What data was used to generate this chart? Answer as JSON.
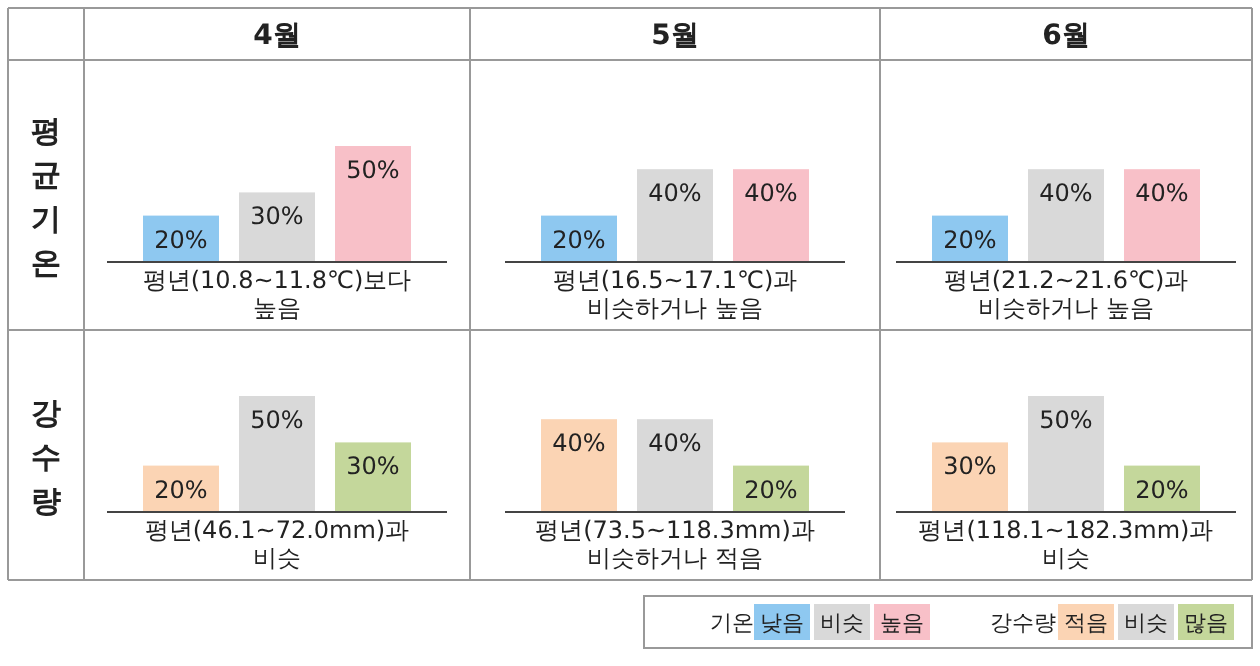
{
  "chart_data": [
    {
      "type": "bar",
      "title": "4월",
      "ylabel": "평균기온",
      "categories": [
        null,
        null,
        null
      ],
      "values": [
        20,
        30,
        50
      ],
      "value_labels": [
        "20%",
        "30%",
        "50%"
      ],
      "colors": [
        "#8ec8f0",
        "#d9d9d9",
        "#f8c0c8"
      ],
      "annotations": [
        "평년(10.8~11.8℃)보다 높음"
      ]
    },
    {
      "type": "bar",
      "title": "5월",
      "categories": [
        null,
        null,
        null
      ],
      "values": [
        20,
        40,
        40
      ],
      "value_labels": [
        "20%",
        "40%",
        "40%"
      ],
      "colors": [
        "#8ec8f0",
        "#d9d9d9",
        "#f8c0c8"
      ],
      "annotations": [
        "평년(16.5~17.1℃)과 비슷하거나 높음"
      ]
    },
    {
      "type": "bar",
      "title": "6월",
      "categories": [
        null,
        null,
        null
      ],
      "values": [
        20,
        40,
        40
      ],
      "value_labels": [
        "20%",
        "40%",
        "40%"
      ],
      "colors": [
        "#8ec8f0",
        "#d9d9d9",
        "#f8c0c8"
      ],
      "annotations": [
        "평년(21.2~21.6℃)과 비슷하거나 높음"
      ]
    },
    {
      "type": "bar",
      "ylabel": "강수량",
      "categories": [
        null,
        null,
        null
      ],
      "values": [
        20,
        50,
        30
      ],
      "value_labels": [
        "20%",
        "50%",
        "30%"
      ],
      "colors": [
        "#fbd4b4",
        "#d9d9d9",
        "#c4d79b"
      ],
      "annotations": [
        "평년(46.1~72.0mm)과 비슷"
      ]
    },
    {
      "type": "bar",
      "categories": [
        null,
        null,
        null
      ],
      "values": [
        40,
        40,
        20
      ],
      "value_labels": [
        "40%",
        "40%",
        "20%"
      ],
      "colors": [
        "#fbd4b4",
        "#d9d9d9",
        "#c4d79b"
      ],
      "annotations": [
        "평년(73.5~118.3mm)과 비슷하거나 적음"
      ]
    },
    {
      "type": "bar",
      "categories": [
        null,
        null,
        null
      ],
      "values": [
        30,
        50,
        20
      ],
      "value_labels": [
        "30%",
        "50%",
        "20%"
      ],
      "colors": [
        "#fbd4b4",
        "#d9d9d9",
        "#c4d79b"
      ],
      "annotations": [
        "평년(118.1~182.3mm)과 비슷"
      ]
    },
    {
      "type": "other",
      "title": "기온",
      "categories": [
        "낮음",
        "비슷",
        "높음"
      ],
      "colors": [
        "#8ec8f0",
        "#d9d9d9",
        "#f8c0c8"
      ]
    },
    {
      "type": "other",
      "title": "강수량",
      "categories": [
        "적음",
        "비슷",
        "많음"
      ],
      "colors": [
        "#fbd4b4",
        "#d9d9d9",
        "#c4d79b"
      ]
    }
  ]
}
